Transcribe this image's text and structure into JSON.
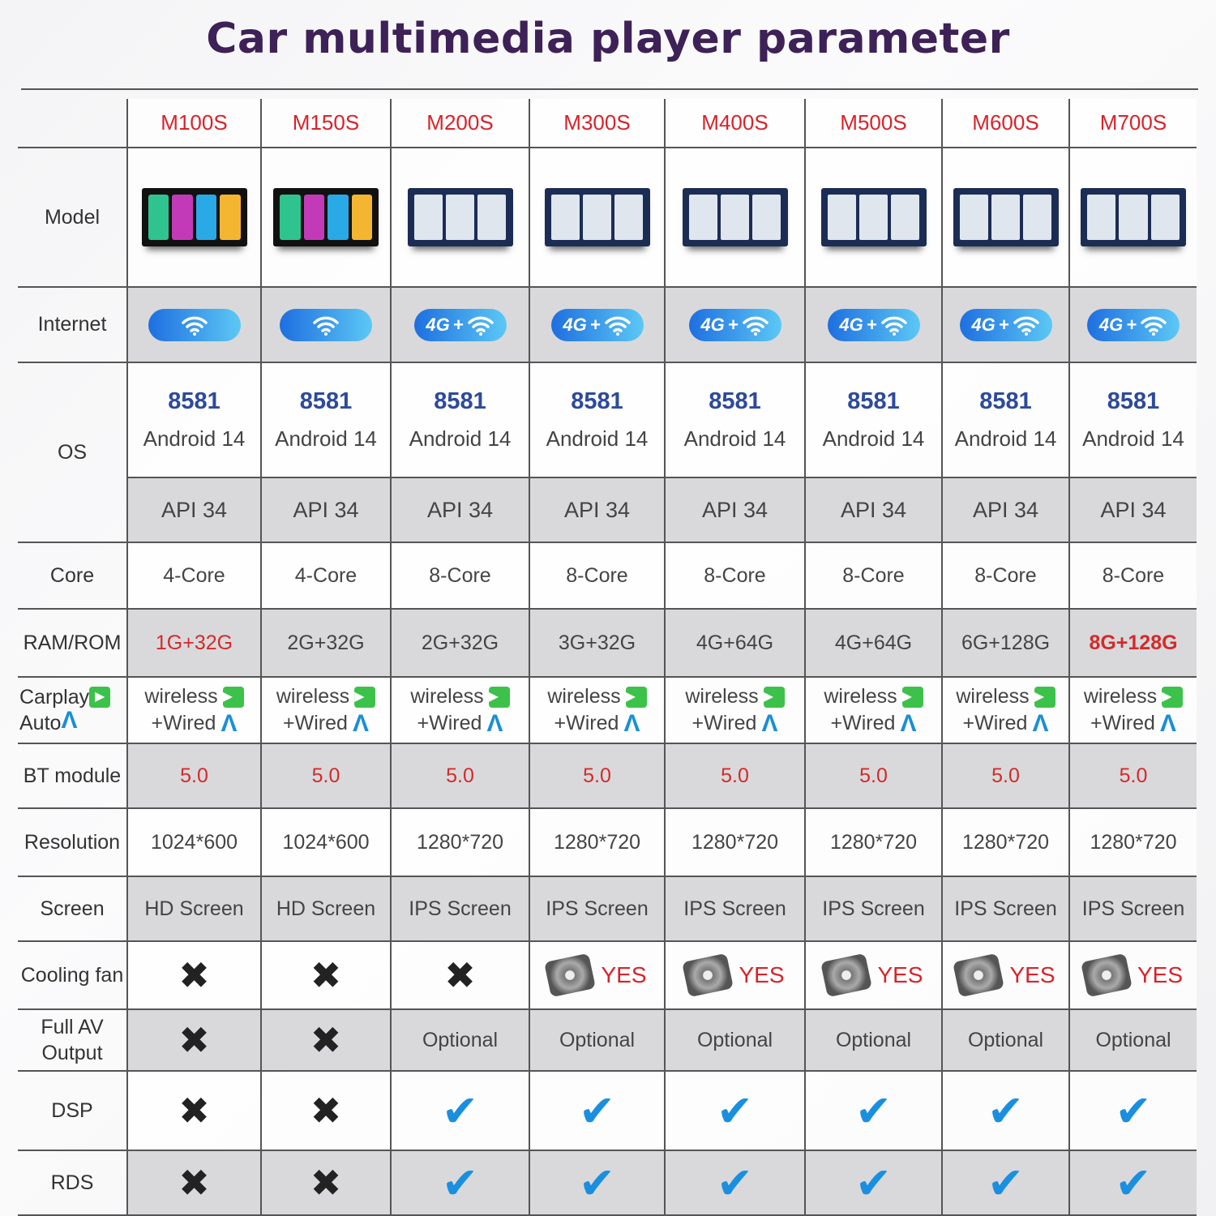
{
  "title": "Car multimedia player parameter",
  "row_labels": {
    "model": "Model",
    "internet": "Internet",
    "os": "OS",
    "core": "Core",
    "ram": "RAM/ROM",
    "carplay": "Carplay",
    "auto": "Auto",
    "bt": "BT module",
    "resolution": "Resolution",
    "screen": "Screen",
    "fan": "Cooling fan",
    "av_line1": "Full AV",
    "av_line2": "Output",
    "dsp": "DSP",
    "rds": "RDS"
  },
  "colors": {
    "title": "#3d2157",
    "model_name": "#d8232a",
    "os_version": "#2d4a9c",
    "highlight": "#d42a2a",
    "check": "#1a8fe0"
  },
  "models": [
    {
      "name": "M100S",
      "screen_style": "grid-ui",
      "internet": "wifi",
      "soc": "8581",
      "android": "Android 14",
      "api": "API 34",
      "core": "4-Core",
      "ram": "1G+32G",
      "ram_highlight": "red",
      "carplay": "wireless",
      "auto": "+Wired",
      "bt": "5.0",
      "resolution": "1024*600",
      "screen": "HD Screen",
      "fan": "x",
      "fan_label": "",
      "av": "x",
      "dsp": "x",
      "rds": "x"
    },
    {
      "name": "M150S",
      "screen_style": "grid-ui",
      "internet": "wifi",
      "soc": "8581",
      "android": "Android 14",
      "api": "API 34",
      "core": "4-Core",
      "ram": "2G+32G",
      "ram_highlight": "",
      "carplay": "wireless",
      "auto": "+Wired",
      "bt": "5.0",
      "resolution": "1024*600",
      "screen": "HD Screen",
      "fan": "x",
      "fan_label": "",
      "av": "x",
      "dsp": "x",
      "rds": "x"
    },
    {
      "name": "M200S",
      "screen_style": "map-ui",
      "internet": "4G+wifi",
      "soc": "8581",
      "android": "Android 14",
      "api": "API 34",
      "core": "8-Core",
      "ram": "2G+32G",
      "ram_highlight": "",
      "carplay": "wireless",
      "auto": "+Wired",
      "bt": "5.0",
      "resolution": "1280*720",
      "screen": "IPS Screen",
      "fan": "x",
      "fan_label": "",
      "av": "Optional",
      "dsp": "check",
      "rds": "check"
    },
    {
      "name": "M300S",
      "screen_style": "map-ui",
      "internet": "4G+wifi",
      "soc": "8581",
      "android": "Android 14",
      "api": "API 34",
      "core": "8-Core",
      "ram": "3G+32G",
      "ram_highlight": "",
      "carplay": "wireless",
      "auto": "+Wired",
      "bt": "5.0",
      "resolution": "1280*720",
      "screen": "IPS Screen",
      "fan": "yes",
      "fan_label": "YES",
      "av": "Optional",
      "dsp": "check",
      "rds": "check"
    },
    {
      "name": "M400S",
      "screen_style": "map-ui",
      "internet": "4G+wifi",
      "soc": "8581",
      "android": "Android 14",
      "api": "API 34",
      "core": "8-Core",
      "ram": "4G+64G",
      "ram_highlight": "",
      "carplay": "wireless",
      "auto": "+Wired",
      "bt": "5.0",
      "resolution": "1280*720",
      "screen": "IPS Screen",
      "fan": "yes",
      "fan_label": "YES",
      "av": "Optional",
      "dsp": "check",
      "rds": "check"
    },
    {
      "name": "M500S",
      "screen_style": "map-ui",
      "internet": "4G+wifi",
      "soc": "8581",
      "android": "Android 14",
      "api": "API 34",
      "core": "8-Core",
      "ram": "4G+64G",
      "ram_highlight": "",
      "carplay": "wireless",
      "auto": "+Wired",
      "bt": "5.0",
      "resolution": "1280*720",
      "screen": "IPS Screen",
      "fan": "yes",
      "fan_label": "YES",
      "av": "Optional",
      "dsp": "check",
      "rds": "check"
    },
    {
      "name": "M600S",
      "screen_style": "map-ui",
      "internet": "4G+wifi",
      "soc": "8581",
      "android": "Android 14",
      "api": "API 34",
      "core": "8-Core",
      "ram": "6G+128G",
      "ram_highlight": "",
      "carplay": "wireless",
      "auto": "+Wired",
      "bt": "5.0",
      "resolution": "1280*720",
      "screen": "IPS Screen",
      "fan": "yes",
      "fan_label": "YES",
      "av": "Optional",
      "dsp": "check",
      "rds": "check"
    },
    {
      "name": "M700S",
      "screen_style": "map-ui",
      "internet": "4G+wifi",
      "soc": "8581",
      "android": "Android 14",
      "api": "API 34",
      "core": "8-Core",
      "ram": "8G+128G",
      "ram_highlight": "red-bold",
      "carplay": "wireless",
      "auto": "+Wired",
      "bt": "5.0",
      "resolution": "1280*720",
      "screen": "IPS Screen",
      "fan": "yes",
      "fan_label": "YES",
      "av": "Optional",
      "dsp": "check",
      "rds": "check"
    }
  ],
  "badge_text": {
    "4g": "4G",
    "plus": "+"
  }
}
